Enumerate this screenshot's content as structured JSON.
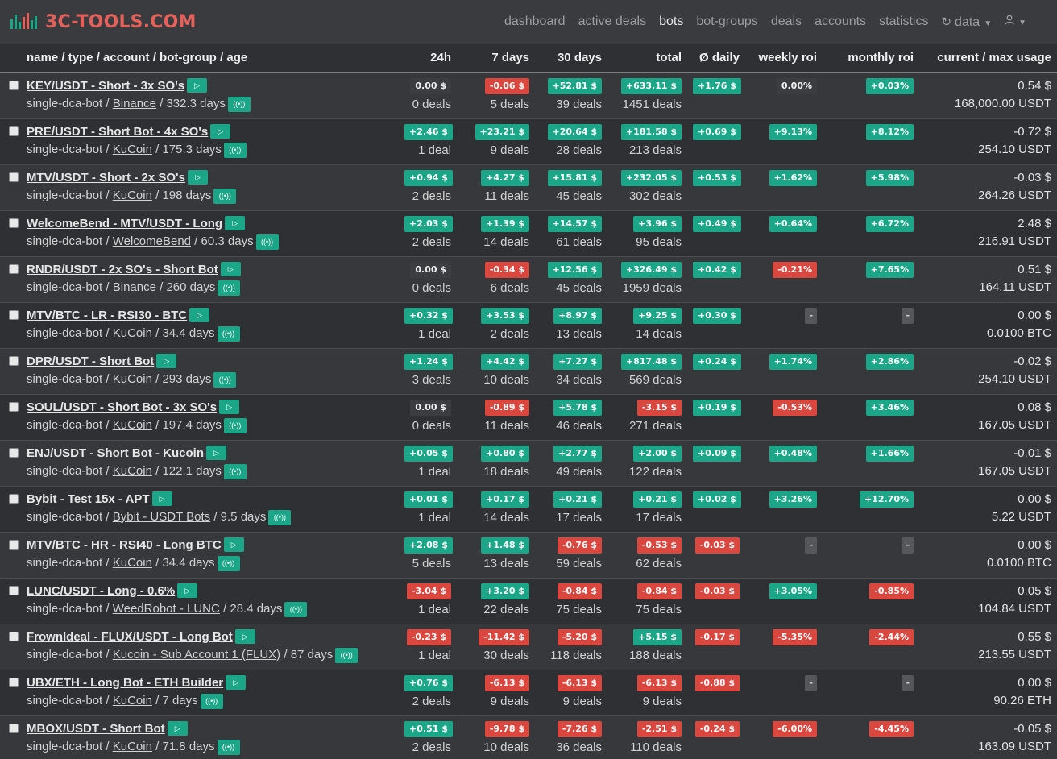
{
  "brand": {
    "name": "3C-TOOLS.COM"
  },
  "nav": {
    "items": [
      "dashboard",
      "active deals",
      "bots",
      "bot-groups",
      "deals",
      "accounts",
      "statistics"
    ],
    "active": "bots",
    "data_label": "data"
  },
  "colors": {
    "positive": "#1ba688",
    "negative": "#d9473f",
    "brand": "#e4605a"
  },
  "table": {
    "headers": {
      "name": "name / type / account / bot-group / age",
      "h24": "24h",
      "d7": "7 days",
      "d30": "30 days",
      "total": "total",
      "daily": "Ø daily",
      "weekly": "weekly roi",
      "monthly": "monthly roi",
      "usage": "current / max usage"
    },
    "rows": [
      {
        "title": "KEY/USDT - Short - 3x SO's",
        "type": "single-dca-bot",
        "account": "Binance",
        "age": "332.3 days",
        "h24": {
          "v": "0.00 $",
          "s": "zero"
        },
        "h24_deals": "0 deals",
        "d7": {
          "v": "-0.06 $",
          "s": "neg"
        },
        "d7_deals": "5 deals",
        "d30": {
          "v": "+52.81 $",
          "s": "pos"
        },
        "d30_deals": "39 deals",
        "total": {
          "v": "+633.11 $",
          "s": "pos"
        },
        "total_deals": "1451 deals",
        "daily": {
          "v": "+1.76 $",
          "s": "pos"
        },
        "weekly": {
          "v": "0.00%",
          "s": "zero"
        },
        "monthly": {
          "v": "+0.03%",
          "s": "pos"
        },
        "usage_current": "0.54 $",
        "usage_max": "168,000.00 USDT"
      },
      {
        "title": "PRE/USDT - Short Bot - 4x SO's",
        "type": "single-dca-bot",
        "account": "KuCoin",
        "age": "175.3 days",
        "h24": {
          "v": "+2.46 $",
          "s": "pos"
        },
        "h24_deals": "1 deal",
        "d7": {
          "v": "+23.21 $",
          "s": "pos"
        },
        "d7_deals": "9 deals",
        "d30": {
          "v": "+20.64 $",
          "s": "pos"
        },
        "d30_deals": "28 deals",
        "total": {
          "v": "+181.58 $",
          "s": "pos"
        },
        "total_deals": "213 deals",
        "daily": {
          "v": "+0.69 $",
          "s": "pos"
        },
        "weekly": {
          "v": "+9.13%",
          "s": "pos"
        },
        "monthly": {
          "v": "+8.12%",
          "s": "pos"
        },
        "usage_current": "-0.72 $",
        "usage_max": "254.10 USDT"
      },
      {
        "title": "MTV/USDT - Short - 2x SO's",
        "type": "single-dca-bot",
        "account": "KuCoin",
        "age": "198 days",
        "h24": {
          "v": "+0.94 $",
          "s": "pos"
        },
        "h24_deals": "2 deals",
        "d7": {
          "v": "+4.27 $",
          "s": "pos"
        },
        "d7_deals": "11 deals",
        "d30": {
          "v": "+15.81 $",
          "s": "pos"
        },
        "d30_deals": "45 deals",
        "total": {
          "v": "+232.05 $",
          "s": "pos"
        },
        "total_deals": "302 deals",
        "daily": {
          "v": "+0.53 $",
          "s": "pos"
        },
        "weekly": {
          "v": "+1.62%",
          "s": "pos"
        },
        "monthly": {
          "v": "+5.98%",
          "s": "pos"
        },
        "usage_current": "-0.03 $",
        "usage_max": "264.26 USDT"
      },
      {
        "title": "WelcomeBend - MTV/USDT - Long",
        "type": "single-dca-bot",
        "account": "WelcomeBend",
        "age": "60.3 days",
        "h24": {
          "v": "+2.03 $",
          "s": "pos"
        },
        "h24_deals": "2 deals",
        "d7": {
          "v": "+1.39 $",
          "s": "pos"
        },
        "d7_deals": "14 deals",
        "d30": {
          "v": "+14.57 $",
          "s": "pos"
        },
        "d30_deals": "61 deals",
        "total": {
          "v": "+3.96 $",
          "s": "pos"
        },
        "total_deals": "95 deals",
        "daily": {
          "v": "+0.49 $",
          "s": "pos"
        },
        "weekly": {
          "v": "+0.64%",
          "s": "pos"
        },
        "monthly": {
          "v": "+6.72%",
          "s": "pos"
        },
        "usage_current": "2.48 $",
        "usage_max": "216.91 USDT"
      },
      {
        "title": "RNDR/USDT - 2x SO's - Short Bot",
        "type": "single-dca-bot",
        "account": "Binance",
        "age": "260 days",
        "h24": {
          "v": "0.00 $",
          "s": "zero"
        },
        "h24_deals": "0 deals",
        "d7": {
          "v": "-0.34 $",
          "s": "neg"
        },
        "d7_deals": "6 deals",
        "d30": {
          "v": "+12.56 $",
          "s": "pos"
        },
        "d30_deals": "45 deals",
        "total": {
          "v": "+326.49 $",
          "s": "pos"
        },
        "total_deals": "1959 deals",
        "daily": {
          "v": "+0.42 $",
          "s": "pos"
        },
        "weekly": {
          "v": "-0.21%",
          "s": "neg"
        },
        "monthly": {
          "v": "+7.65%",
          "s": "pos"
        },
        "usage_current": "0.51 $",
        "usage_max": "164.11 USDT"
      },
      {
        "title": "MTV/BTC - LR - RSI30 - BTC",
        "type": "single-dca-bot",
        "account": "KuCoin",
        "age": "34.4 days",
        "h24": {
          "v": "+0.32 $",
          "s": "pos"
        },
        "h24_deals": "1 deal",
        "d7": {
          "v": "+3.53 $",
          "s": "pos"
        },
        "d7_deals": "2 deals",
        "d30": {
          "v": "+8.97 $",
          "s": "pos"
        },
        "d30_deals": "13 deals",
        "total": {
          "v": "+9.25 $",
          "s": "pos"
        },
        "total_deals": "14 deals",
        "daily": {
          "v": "+0.30 $",
          "s": "pos"
        },
        "weekly": {
          "v": "-",
          "s": "dash"
        },
        "monthly": {
          "v": "-",
          "s": "dash"
        },
        "usage_current": "0.00 $",
        "usage_max": "0.0100 BTC"
      },
      {
        "title": "DPR/USDT - Short Bot",
        "type": "single-dca-bot",
        "account": "KuCoin",
        "age": "293 days",
        "h24": {
          "v": "+1.24 $",
          "s": "pos"
        },
        "h24_deals": "3 deals",
        "d7": {
          "v": "+4.42 $",
          "s": "pos"
        },
        "d7_deals": "10 deals",
        "d30": {
          "v": "+7.27 $",
          "s": "pos"
        },
        "d30_deals": "34 deals",
        "total": {
          "v": "+817.48 $",
          "s": "pos"
        },
        "total_deals": "569 deals",
        "daily": {
          "v": "+0.24 $",
          "s": "pos"
        },
        "weekly": {
          "v": "+1.74%",
          "s": "pos"
        },
        "monthly": {
          "v": "+2.86%",
          "s": "pos"
        },
        "usage_current": "-0.02 $",
        "usage_max": "254.10 USDT"
      },
      {
        "title": "SOUL/USDT - Short Bot - 3x SO's",
        "type": "single-dca-bot",
        "account": "KuCoin",
        "age": "197.4 days",
        "h24": {
          "v": "0.00 $",
          "s": "zero"
        },
        "h24_deals": "0 deals",
        "d7": {
          "v": "-0.89 $",
          "s": "neg"
        },
        "d7_deals": "11 deals",
        "d30": {
          "v": "+5.78 $",
          "s": "pos"
        },
        "d30_deals": "46 deals",
        "total": {
          "v": "-3.15 $",
          "s": "neg"
        },
        "total_deals": "271 deals",
        "daily": {
          "v": "+0.19 $",
          "s": "pos"
        },
        "weekly": {
          "v": "-0.53%",
          "s": "neg"
        },
        "monthly": {
          "v": "+3.46%",
          "s": "pos"
        },
        "usage_current": "0.08 $",
        "usage_max": "167.05 USDT"
      },
      {
        "title": "ENJ/USDT - Short Bot - Kucoin",
        "type": "single-dca-bot",
        "account": "KuCoin",
        "age": "122.1 days",
        "h24": {
          "v": "+0.05 $",
          "s": "pos"
        },
        "h24_deals": "1 deal",
        "d7": {
          "v": "+0.80 $",
          "s": "pos"
        },
        "d7_deals": "18 deals",
        "d30": {
          "v": "+2.77 $",
          "s": "pos"
        },
        "d30_deals": "49 deals",
        "total": {
          "v": "+2.00 $",
          "s": "pos"
        },
        "total_deals": "122 deals",
        "daily": {
          "v": "+0.09 $",
          "s": "pos"
        },
        "weekly": {
          "v": "+0.48%",
          "s": "pos"
        },
        "monthly": {
          "v": "+1.66%",
          "s": "pos"
        },
        "usage_current": "-0.01 $",
        "usage_max": "167.05 USDT"
      },
      {
        "title": "Bybit - Test 15x - APT",
        "type": "single-dca-bot",
        "account": "Bybit - USDT Bots",
        "age": "9.5 days",
        "h24": {
          "v": "+0.01 $",
          "s": "pos"
        },
        "h24_deals": "1 deal",
        "d7": {
          "v": "+0.17 $",
          "s": "pos"
        },
        "d7_deals": "14 deals",
        "d30": {
          "v": "+0.21 $",
          "s": "pos"
        },
        "d30_deals": "17 deals",
        "total": {
          "v": "+0.21 $",
          "s": "pos"
        },
        "total_deals": "17 deals",
        "daily": {
          "v": "+0.02 $",
          "s": "pos"
        },
        "weekly": {
          "v": "+3.26%",
          "s": "pos"
        },
        "monthly": {
          "v": "+12.70%",
          "s": "pos"
        },
        "usage_current": "0.00 $",
        "usage_max": "5.22 USDT"
      },
      {
        "title": "MTV/BTC - HR - RSI40 - Long BTC",
        "type": "single-dca-bot",
        "account": "KuCoin",
        "age": "34.4 days",
        "h24": {
          "v": "+2.08 $",
          "s": "pos"
        },
        "h24_deals": "5 deals",
        "d7": {
          "v": "+1.48 $",
          "s": "pos"
        },
        "d7_deals": "13 deals",
        "d30": {
          "v": "-0.76 $",
          "s": "neg"
        },
        "d30_deals": "59 deals",
        "total": {
          "v": "-0.53 $",
          "s": "neg"
        },
        "total_deals": "62 deals",
        "daily": {
          "v": "-0.03 $",
          "s": "neg"
        },
        "weekly": {
          "v": "-",
          "s": "dash"
        },
        "monthly": {
          "v": "-",
          "s": "dash"
        },
        "usage_current": "0.00 $",
        "usage_max": "0.0100 BTC"
      },
      {
        "title": "LUNC/USDT - Long - 0.6%",
        "type": "single-dca-bot",
        "account": "WeedRobot - LUNC",
        "age": "28.4 days",
        "h24": {
          "v": "-3.04 $",
          "s": "neg"
        },
        "h24_deals": "1 deal",
        "d7": {
          "v": "+3.20 $",
          "s": "pos"
        },
        "d7_deals": "22 deals",
        "d30": {
          "v": "-0.84 $",
          "s": "neg"
        },
        "d30_deals": "75 deals",
        "total": {
          "v": "-0.84 $",
          "s": "neg"
        },
        "total_deals": "75 deals",
        "daily": {
          "v": "-0.03 $",
          "s": "neg"
        },
        "weekly": {
          "v": "+3.05%",
          "s": "pos"
        },
        "monthly": {
          "v": "-0.85%",
          "s": "neg"
        },
        "usage_current": "0.05 $",
        "usage_max": "104.84 USDT"
      },
      {
        "title": "FrownIdeal - FLUX/USDT - Long Bot",
        "type": "single-dca-bot",
        "account": "Kucoin - Sub Account 1 (FLUX)",
        "age": "87 days",
        "h24": {
          "v": "-0.23 $",
          "s": "neg"
        },
        "h24_deals": "1 deal",
        "d7": {
          "v": "-11.42 $",
          "s": "neg"
        },
        "d7_deals": "30 deals",
        "d30": {
          "v": "-5.20 $",
          "s": "neg"
        },
        "d30_deals": "118 deals",
        "total": {
          "v": "+5.15 $",
          "s": "pos"
        },
        "total_deals": "188 deals",
        "daily": {
          "v": "-0.17 $",
          "s": "neg"
        },
        "weekly": {
          "v": "-5.35%",
          "s": "neg"
        },
        "monthly": {
          "v": "-2.44%",
          "s": "neg"
        },
        "usage_current": "0.55 $",
        "usage_max": "213.55 USDT"
      },
      {
        "title": "UBX/ETH - Long Bot - ETH Builder",
        "type": "single-dca-bot",
        "account": "KuCoin",
        "age": "7 days",
        "h24": {
          "v": "+0.76 $",
          "s": "pos"
        },
        "h24_deals": "2 deals",
        "d7": {
          "v": "-6.13 $",
          "s": "neg"
        },
        "d7_deals": "9 deals",
        "d30": {
          "v": "-6.13 $",
          "s": "neg"
        },
        "d30_deals": "9 deals",
        "total": {
          "v": "-6.13 $",
          "s": "neg"
        },
        "total_deals": "9 deals",
        "daily": {
          "v": "-0.88 $",
          "s": "neg"
        },
        "weekly": {
          "v": "-",
          "s": "dash"
        },
        "monthly": {
          "v": "-",
          "s": "dash"
        },
        "usage_current": "0.00 $",
        "usage_max": "90.26 ETH"
      },
      {
        "title": "MBOX/USDT - Short Bot",
        "type": "single-dca-bot",
        "account": "KuCoin",
        "age": "71.8 days",
        "h24": {
          "v": "+0.51 $",
          "s": "pos"
        },
        "h24_deals": "2 deals",
        "d7": {
          "v": "-9.78 $",
          "s": "neg"
        },
        "d7_deals": "10 deals",
        "d30": {
          "v": "-7.26 $",
          "s": "neg"
        },
        "d30_deals": "36 deals",
        "total": {
          "v": "-2.51 $",
          "s": "neg"
        },
        "total_deals": "110 deals",
        "daily": {
          "v": "-0.24 $",
          "s": "neg"
        },
        "weekly": {
          "v": "-6.00%",
          "s": "neg"
        },
        "monthly": {
          "v": "-4.45%",
          "s": "neg"
        },
        "usage_current": "-0.05 $",
        "usage_max": "163.09 USDT"
      }
    ]
  }
}
